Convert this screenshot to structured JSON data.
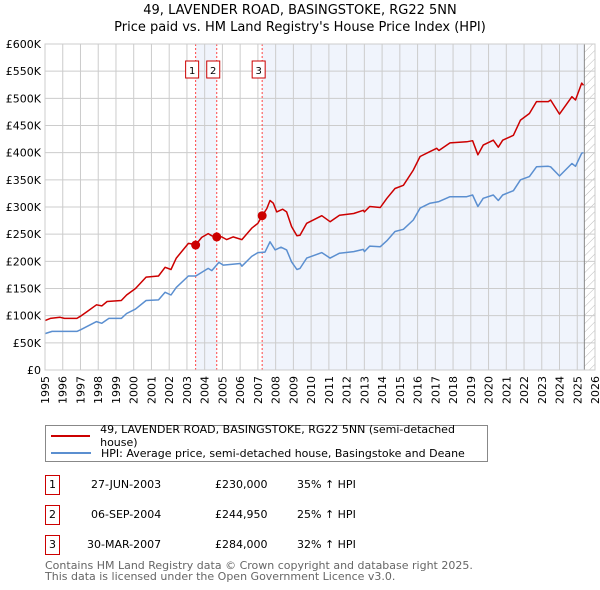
{
  "title": "49, LAVENDER ROAD, BASINGSTOKE, RG22 5NN",
  "subtitle": "Price paid vs. HM Land Registry's House Price Index (HPI)",
  "legend": [
    {
      "label": "49, LAVENDER ROAD, BASINGSTOKE, RG22 5NN (semi-detached house)",
      "color": "#cc0000"
    },
    {
      "label": "HPI: Average price, semi-detached house, Basingstoke and Deane",
      "color": "#5b8fd0"
    }
  ],
  "transactions": [
    {
      "num": "1",
      "date": "27-JUN-2003",
      "price": "£230,000",
      "hpi": "35% ↑ HPI"
    },
    {
      "num": "2",
      "date": "06-SEP-2004",
      "price": "£244,950",
      "hpi": "25% ↑ HPI"
    },
    {
      "num": "3",
      "date": "30-MAR-2007",
      "price": "£284,000",
      "hpi": "32% ↑ HPI"
    }
  ],
  "footer": [
    "Contains HM Land Registry data © Crown copyright and database right 2025.",
    "This data is licensed under the Open Government Licence v3.0."
  ],
  "chart_data": {
    "type": "line",
    "title": "49, LAVENDER ROAD, BASINGSTOKE, RG22 5NN",
    "xlim": [
      1995,
      2026
    ],
    "ylim": [
      0,
      600000
    ],
    "x_ticks": [
      "1995",
      "1996",
      "1997",
      "1998",
      "1999",
      "2000",
      "2001",
      "2002",
      "2003",
      "2004",
      "2005",
      "2006",
      "2007",
      "2008",
      "2009",
      "2010",
      "2011",
      "2012",
      "2013",
      "2014",
      "2015",
      "2016",
      "2017",
      "2018",
      "2019",
      "2020",
      "2021",
      "2022",
      "2023",
      "2024",
      "2025",
      "2026"
    ],
    "y_ticks": [
      {
        "v": 0,
        "label": "£0"
      },
      {
        "v": 50000,
        "label": "£50K"
      },
      {
        "v": 100000,
        "label": "£100K"
      },
      {
        "v": 150000,
        "label": "£150K"
      },
      {
        "v": 200000,
        "label": "£200K"
      },
      {
        "v": 250000,
        "label": "£250K"
      },
      {
        "v": 300000,
        "label": "£300K"
      },
      {
        "v": 350000,
        "label": "£350K"
      },
      {
        "v": 400000,
        "label": "£400K"
      },
      {
        "v": 450000,
        "label": "£450K"
      },
      {
        "v": 500000,
        "label": "£500K"
      },
      {
        "v": 550000,
        "label": "£550K"
      },
      {
        "v": 600000,
        "label": "£600K"
      }
    ],
    "grid": true,
    "data_end": 2025.4,
    "sales": [
      {
        "label": "1",
        "x": 2003.49,
        "y": 230000
      },
      {
        "label": "2",
        "x": 2004.68,
        "y": 244950
      },
      {
        "label": "3",
        "x": 2007.24,
        "y": 284000
      }
    ],
    "series": [
      {
        "name": "49, LAVENDER ROAD, BASINGSTOKE, RG22 5NN (semi-detached house)",
        "color": "#cc0000",
        "points": [
          [
            1995.0,
            91
          ],
          [
            1995.3,
            95
          ],
          [
            1995.85,
            97
          ],
          [
            1996.1,
            95
          ],
          [
            1996.8,
            95
          ],
          [
            1997.0,
            99
          ],
          [
            1997.35,
            107
          ],
          [
            1997.9,
            120
          ],
          [
            1998.2,
            118
          ],
          [
            1998.5,
            126
          ],
          [
            1999.3,
            128
          ],
          [
            1999.6,
            138
          ],
          [
            2000.1,
            150
          ],
          [
            2000.7,
            171
          ],
          [
            2001.4,
            173
          ],
          [
            2001.77,
            189
          ],
          [
            2002.1,
            185
          ],
          [
            2002.4,
            206
          ],
          [
            2003.08,
            233
          ],
          [
            2003.27,
            232
          ],
          [
            2003.49,
            230
          ],
          [
            2003.83,
            244
          ],
          [
            2004.2,
            251
          ],
          [
            2004.4,
            247
          ],
          [
            2004.68,
            245
          ],
          [
            2004.96,
            245
          ],
          [
            2005.24,
            240
          ],
          [
            2005.6,
            245
          ],
          [
            2006.1,
            240
          ],
          [
            2006.65,
            261
          ],
          [
            2007.0,
            270
          ],
          [
            2007.24,
            284
          ],
          [
            2007.5,
            297
          ],
          [
            2007.68,
            312
          ],
          [
            2007.87,
            307
          ],
          [
            2008.06,
            291
          ],
          [
            2008.4,
            296
          ],
          [
            2008.62,
            291
          ],
          [
            2008.9,
            264
          ],
          [
            2009.2,
            247
          ],
          [
            2009.37,
            248
          ],
          [
            2009.75,
            270
          ],
          [
            2010.6,
            284
          ],
          [
            2011.07,
            273
          ],
          [
            2011.6,
            285
          ],
          [
            2012.4,
            288
          ],
          [
            2012.94,
            294
          ],
          [
            2013.0,
            291
          ],
          [
            2013.3,
            301
          ],
          [
            2013.9,
            299
          ],
          [
            2014.27,
            316
          ],
          [
            2014.73,
            334
          ],
          [
            2015.2,
            340
          ],
          [
            2015.76,
            368
          ],
          [
            2016.14,
            393
          ],
          [
            2016.7,
            402
          ],
          [
            2017.08,
            408
          ],
          [
            2017.2,
            404
          ],
          [
            2017.83,
            418
          ],
          [
            2018.77,
            420
          ],
          [
            2019.1,
            422
          ],
          [
            2019.4,
            396
          ],
          [
            2019.7,
            414
          ],
          [
            2020.27,
            423
          ],
          [
            2020.55,
            410
          ],
          [
            2020.8,
            423
          ],
          [
            2021.4,
            432
          ],
          [
            2021.8,
            460
          ],
          [
            2022.3,
            472
          ],
          [
            2022.7,
            494
          ],
          [
            2023.37,
            494
          ],
          [
            2023.5,
            497
          ],
          [
            2024.0,
            471
          ],
          [
            2024.7,
            503
          ],
          [
            2024.9,
            497
          ],
          [
            2025.25,
            528
          ],
          [
            2025.35,
            524
          ]
        ]
      },
      {
        "name": "HPI: Average price, semi-detached house, Basingstoke and Deane",
        "color": "#5b8fd0",
        "points": [
          [
            1995.0,
            67
          ],
          [
            1995.4,
            71
          ],
          [
            1996.8,
            71
          ],
          [
            1997.0,
            74
          ],
          [
            1997.9,
            89
          ],
          [
            1998.2,
            86
          ],
          [
            1998.6,
            95
          ],
          [
            1999.3,
            95
          ],
          [
            1999.6,
            104
          ],
          [
            2000.1,
            112
          ],
          [
            2000.7,
            128
          ],
          [
            2001.4,
            129
          ],
          [
            2001.77,
            143
          ],
          [
            2002.1,
            138
          ],
          [
            2002.4,
            152
          ],
          [
            2003.08,
            173
          ],
          [
            2003.5,
            173
          ],
          [
            2004.2,
            187
          ],
          [
            2004.4,
            183
          ],
          [
            2004.8,
            198
          ],
          [
            2005.05,
            193
          ],
          [
            2006.0,
            196
          ],
          [
            2006.1,
            191
          ],
          [
            2006.65,
            209
          ],
          [
            2007.0,
            216
          ],
          [
            2007.4,
            217
          ],
          [
            2007.68,
            236
          ],
          [
            2007.97,
            221
          ],
          [
            2008.3,
            226
          ],
          [
            2008.62,
            221
          ],
          [
            2008.9,
            199
          ],
          [
            2009.2,
            185
          ],
          [
            2009.37,
            187
          ],
          [
            2009.75,
            206
          ],
          [
            2010.6,
            216
          ],
          [
            2011.07,
            206
          ],
          [
            2011.6,
            215
          ],
          [
            2012.4,
            218
          ],
          [
            2012.94,
            222
          ],
          [
            2013.0,
            218
          ],
          [
            2013.3,
            228
          ],
          [
            2013.9,
            227
          ],
          [
            2014.27,
            238
          ],
          [
            2014.73,
            255
          ],
          [
            2015.2,
            259
          ],
          [
            2015.76,
            276
          ],
          [
            2016.14,
            298
          ],
          [
            2016.7,
            307
          ],
          [
            2017.2,
            310
          ],
          [
            2017.83,
            319
          ],
          [
            2018.77,
            319
          ],
          [
            2019.1,
            322
          ],
          [
            2019.4,
            301
          ],
          [
            2019.7,
            316
          ],
          [
            2020.27,
            322
          ],
          [
            2020.55,
            312
          ],
          [
            2020.8,
            322
          ],
          [
            2021.4,
            330
          ],
          [
            2021.8,
            350
          ],
          [
            2022.3,
            356
          ],
          [
            2022.7,
            374
          ],
          [
            2023.37,
            375
          ],
          [
            2023.5,
            374
          ],
          [
            2024.0,
            357
          ],
          [
            2024.7,
            380
          ],
          [
            2024.9,
            375
          ],
          [
            2025.25,
            399
          ],
          [
            2025.35,
            400
          ]
        ]
      }
    ]
  }
}
